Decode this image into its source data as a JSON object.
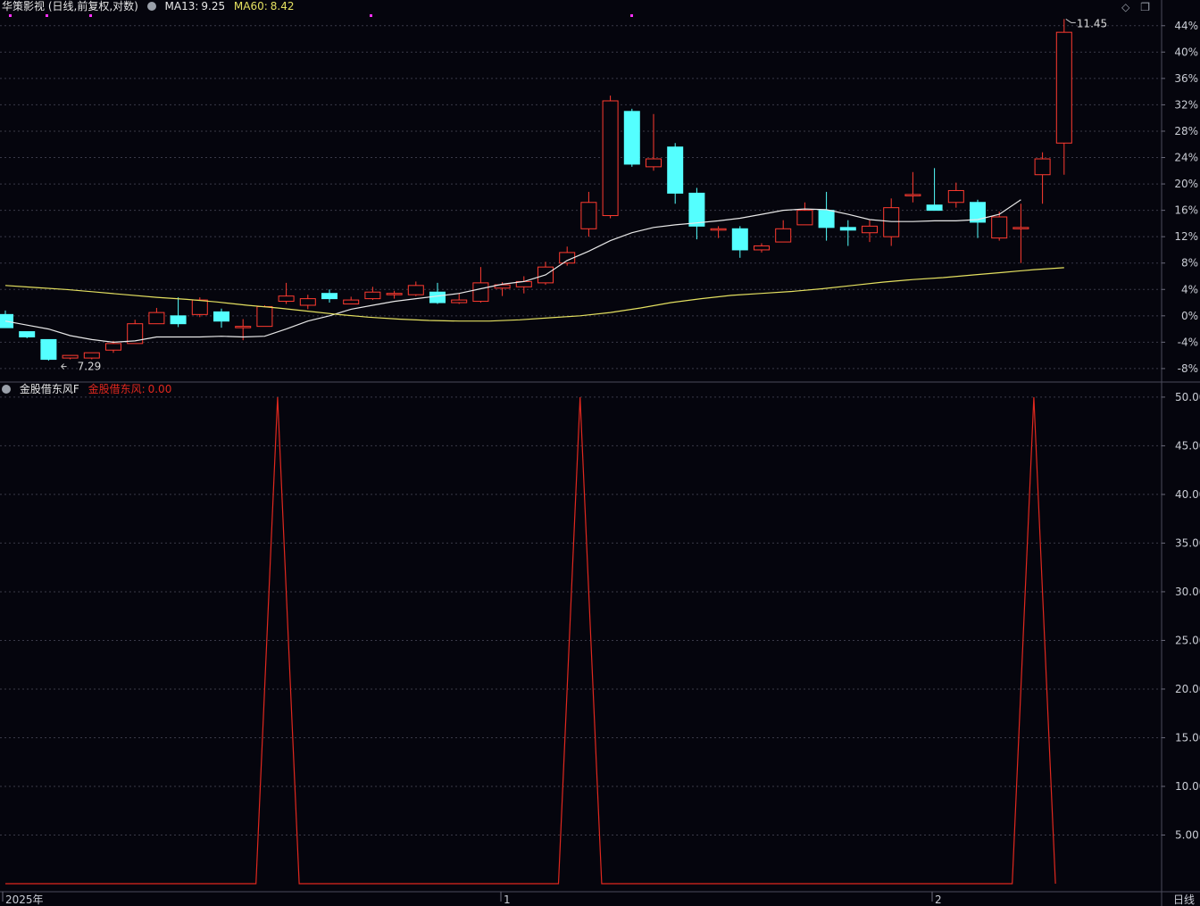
{
  "price_panel": {
    "stock_name": "华策影视",
    "mode": "(日线,前复权,对数)",
    "ma13_label": "MA13:",
    "ma13_value": "9.25",
    "ma60_label": "MA60:",
    "ma60_value": "8.42",
    "high_marker": "11.45",
    "low_marker": "7.29",
    "y_ticks": [
      "44%",
      "40%",
      "36%",
      "32%",
      "28%",
      "24%",
      "20%",
      "16%",
      "12%",
      "8%",
      "4%",
      "0%",
      "-4%",
      "-8%"
    ]
  },
  "indicator_panel": {
    "name": "金股借东风F",
    "series_label": "金股借东风:",
    "series_value": "0.00",
    "y_ticks": [
      "50.00",
      "45.00",
      "40.00",
      "35.00",
      "30.00",
      "25.00",
      "20.00",
      "15.00",
      "10.00",
      "5.00"
    ]
  },
  "x_axis": {
    "labels": [
      "2025年",
      "1",
      "2"
    ],
    "period": "日线"
  },
  "colors": {
    "background": "#05050d",
    "up": "#ff3b30",
    "down": "#54ffff",
    "ma13": "#e8e8e8",
    "ma60": "#e4e060",
    "indicator": "#e0281e",
    "grid": "#3a3a48",
    "axis_text": "#c9ccd4",
    "magenta_marks": "#ff2fff"
  },
  "icons": {
    "diamond": "◇",
    "restore": "❐"
  },
  "chart_data": [
    {
      "type": "candlestick",
      "title": "华策影视 (日线,前复权,对数)",
      "yaxis": "percent",
      "ylim": [
        -9.5,
        46
      ],
      "y_tick_values": [
        44,
        40,
        36,
        32,
        28,
        24,
        20,
        16,
        12,
        8,
        4,
        0,
        -4,
        -8
      ],
      "candles_ohlc_percent": [
        [
          0.2,
          -1.8,
          -1.8,
          0.8
        ],
        [
          -2.4,
          -3.2,
          -3.4,
          -2.4
        ],
        [
          -3.6,
          -6.6,
          -6.8,
          -3.6
        ],
        [
          -6.4,
          -6.0,
          -6.6,
          -6.0
        ],
        [
          -6.4,
          -5.6,
          -6.6,
          -5.6
        ],
        [
          -5.2,
          -4.2,
          -5.6,
          -3.8
        ],
        [
          -4.2,
          -1.2,
          -4.2,
          -0.6
        ],
        [
          -1.2,
          0.5,
          -1.2,
          1.2
        ],
        [
          0.0,
          -1.2,
          -1.7,
          2.8
        ],
        [
          0.2,
          2.4,
          -0.2,
          2.8
        ],
        [
          0.6,
          -0.8,
          -1.8,
          1.1
        ],
        [
          -1.6,
          -1.6,
          -3.7,
          -0.5
        ],
        [
          -1.6,
          1.4,
          -1.6,
          1.6
        ],
        [
          2.2,
          3.0,
          1.8,
          5.0
        ],
        [
          1.6,
          2.6,
          1.0,
          3.2
        ],
        [
          3.4,
          2.6,
          2.0,
          4.0
        ],
        [
          1.8,
          2.4,
          1.8,
          2.9
        ],
        [
          2.6,
          3.6,
          2.4,
          4.4
        ],
        [
          3.2,
          3.4,
          2.6,
          3.8
        ],
        [
          3.2,
          4.6,
          3.0,
          5.2
        ],
        [
          3.6,
          2.0,
          1.8,
          5.0
        ],
        [
          2.0,
          2.4,
          1.8,
          3.4
        ],
        [
          2.2,
          5.0,
          2.0,
          7.4
        ],
        [
          4.2,
          4.7,
          3.0,
          5.1
        ],
        [
          4.4,
          5.2,
          3.4,
          6.0
        ],
        [
          5.0,
          7.4,
          4.7,
          8.2
        ],
        [
          8.0,
          9.6,
          7.6,
          10.5
        ],
        [
          13.2,
          17.2,
          12.0,
          18.8
        ],
        [
          15.2,
          32.6,
          14.8,
          33.4
        ],
        [
          31.0,
          23.0,
          22.6,
          31.4
        ],
        [
          22.6,
          23.8,
          22.0,
          30.6
        ],
        [
          25.6,
          18.6,
          17.0,
          26.2
        ],
        [
          18.6,
          13.6,
          11.6,
          19.4
        ],
        [
          13.2,
          13.2,
          11.8,
          13.6
        ],
        [
          13.2,
          10.0,
          8.8,
          13.6
        ],
        [
          10.0,
          10.6,
          9.6,
          11.0
        ],
        [
          11.2,
          13.2,
          11.2,
          14.5
        ],
        [
          13.8,
          16.0,
          13.8,
          17.2
        ],
        [
          16.0,
          13.4,
          11.4,
          18.8
        ],
        [
          13.4,
          13.0,
          10.6,
          14.5
        ],
        [
          12.6,
          13.6,
          11.2,
          14.5
        ],
        [
          12.0,
          16.4,
          10.6,
          17.8
        ],
        [
          18.4,
          18.4,
          17.2,
          21.8
        ],
        [
          16.8,
          16.0,
          16.0,
          22.4
        ],
        [
          17.2,
          19.0,
          16.4,
          20.2
        ],
        [
          17.2,
          14.2,
          11.8,
          17.6
        ],
        [
          11.8,
          15.0,
          11.4,
          15.8
        ],
        [
          13.4,
          13.4,
          8.0,
          17.0
        ],
        [
          21.4,
          23.8,
          17.0,
          24.8
        ],
        [
          26.2,
          43.0,
          21.4,
          45.0
        ]
      ],
      "ma13_percent": [
        -0.8,
        -1.4,
        -2.0,
        -3.0,
        -3.6,
        -4.0,
        -3.8,
        -3.2,
        -3.2,
        -3.2,
        -3.1,
        -3.2,
        -3.1,
        -2.0,
        -0.8,
        0.0,
        1.0,
        1.6,
        2.2,
        2.6,
        3.0,
        3.4,
        4.1,
        4.8,
        5.2,
        6.2,
        8.4,
        9.8,
        11.4,
        12.6,
        13.4,
        13.8,
        14.1,
        14.4,
        14.8,
        15.4,
        16.0,
        16.2,
        16.1,
        15.4,
        14.6,
        14.3,
        14.3,
        14.4,
        14.4,
        14.6,
        15.4,
        17.6
      ],
      "ma60_percent": [
        4.6,
        4.3,
        4.0,
        3.6,
        3.2,
        2.8,
        2.5,
        2.1,
        1.6,
        1.2,
        0.7,
        0.2,
        -0.2,
        -0.5,
        -0.7,
        -0.8,
        -0.8,
        -0.6,
        -0.3,
        0.0,
        0.5,
        1.2,
        2.0,
        2.6,
        3.1,
        3.4,
        3.7,
        4.1,
        4.6,
        5.1,
        5.5,
        5.8,
        6.2,
        6.6,
        7.0,
        7.3
      ],
      "annotations": [
        {
          "text": "11.45",
          "at": "period high"
        },
        {
          "text": "7.29",
          "at": "period low"
        }
      ]
    },
    {
      "type": "line",
      "title": "金股借东风F",
      "series": [
        {
          "name": "金股借东风",
          "values_points": [
            [
              0,
              0
            ],
            [
              11.6,
              0
            ],
            [
              12.6,
              50
            ],
            [
              13.6,
              0
            ],
            [
              25.6,
              0
            ],
            [
              26.6,
              50
            ],
            [
              27.6,
              0
            ],
            [
              46.6,
              0
            ],
            [
              47.6,
              50
            ],
            [
              48.6,
              0
            ]
          ]
        }
      ],
      "ylim": [
        0,
        51
      ],
      "y_tick_values": [
        50,
        45,
        40,
        35,
        30,
        25,
        20,
        15,
        10,
        5
      ],
      "grid": true
    }
  ]
}
